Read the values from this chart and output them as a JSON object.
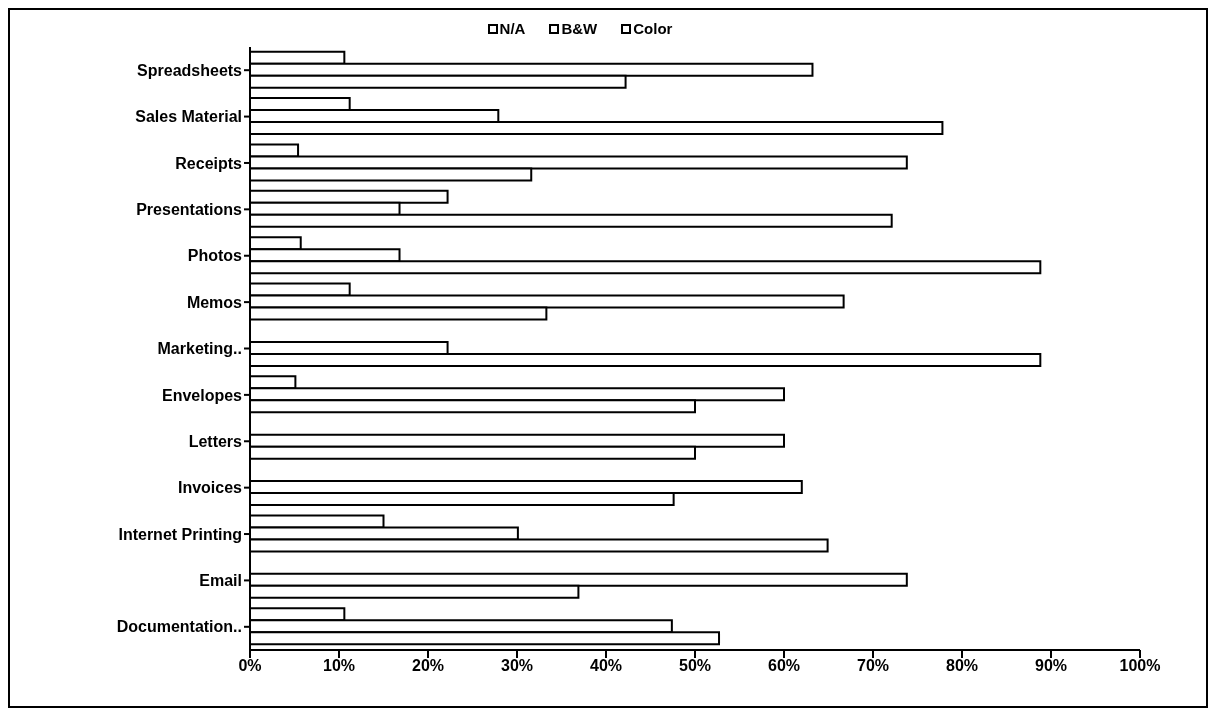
{
  "chart_data": {
    "type": "bar",
    "orientation": "horizontal",
    "categories": [
      "Spreadsheets",
      "Sales Material",
      "Receipts",
      "Presentations",
      "Photos",
      "Memos",
      "Marketing..",
      "Envelopes",
      "Letters",
      "Invoices",
      "Internet Printing",
      "Email",
      "Documentation.."
    ],
    "series": [
      {
        "name": "N/A",
        "color": "#ffffff",
        "values": [
          10.6,
          11.2,
          5.4,
          22.2,
          5.7,
          11.2,
          null,
          5.1,
          null,
          null,
          15.0,
          null,
          10.6
        ]
      },
      {
        "name": "B&W",
        "color": "#ffffff",
        "values": [
          63.2,
          27.9,
          73.8,
          16.8,
          16.8,
          66.7,
          22.2,
          60.0,
          60.0,
          62.0,
          30.1,
          73.8,
          47.4
        ]
      },
      {
        "name": "Color",
        "color": "#ffffff",
        "values": [
          42.2,
          77.8,
          31.6,
          72.1,
          88.8,
          33.3,
          88.8,
          50.0,
          50.0,
          47.6,
          64.9,
          36.9,
          52.7
        ]
      }
    ],
    "xlim": [
      0,
      100
    ],
    "xticks": [
      {
        "value": 0,
        "label": "0%"
      },
      {
        "value": 10,
        "label": "10%"
      },
      {
        "value": 20,
        "label": "20%"
      },
      {
        "value": 30,
        "label": "30%"
      },
      {
        "value": 40,
        "label": "40%"
      },
      {
        "value": 50,
        "label": "50%"
      },
      {
        "value": 60,
        "label": "60%"
      },
      {
        "value": 70,
        "label": "70%"
      },
      {
        "value": 80,
        "label": "80%"
      },
      {
        "value": 90,
        "label": "90%"
      },
      {
        "value": 100,
        "label": "100%"
      }
    ],
    "grid": false,
    "legend": "top"
  }
}
